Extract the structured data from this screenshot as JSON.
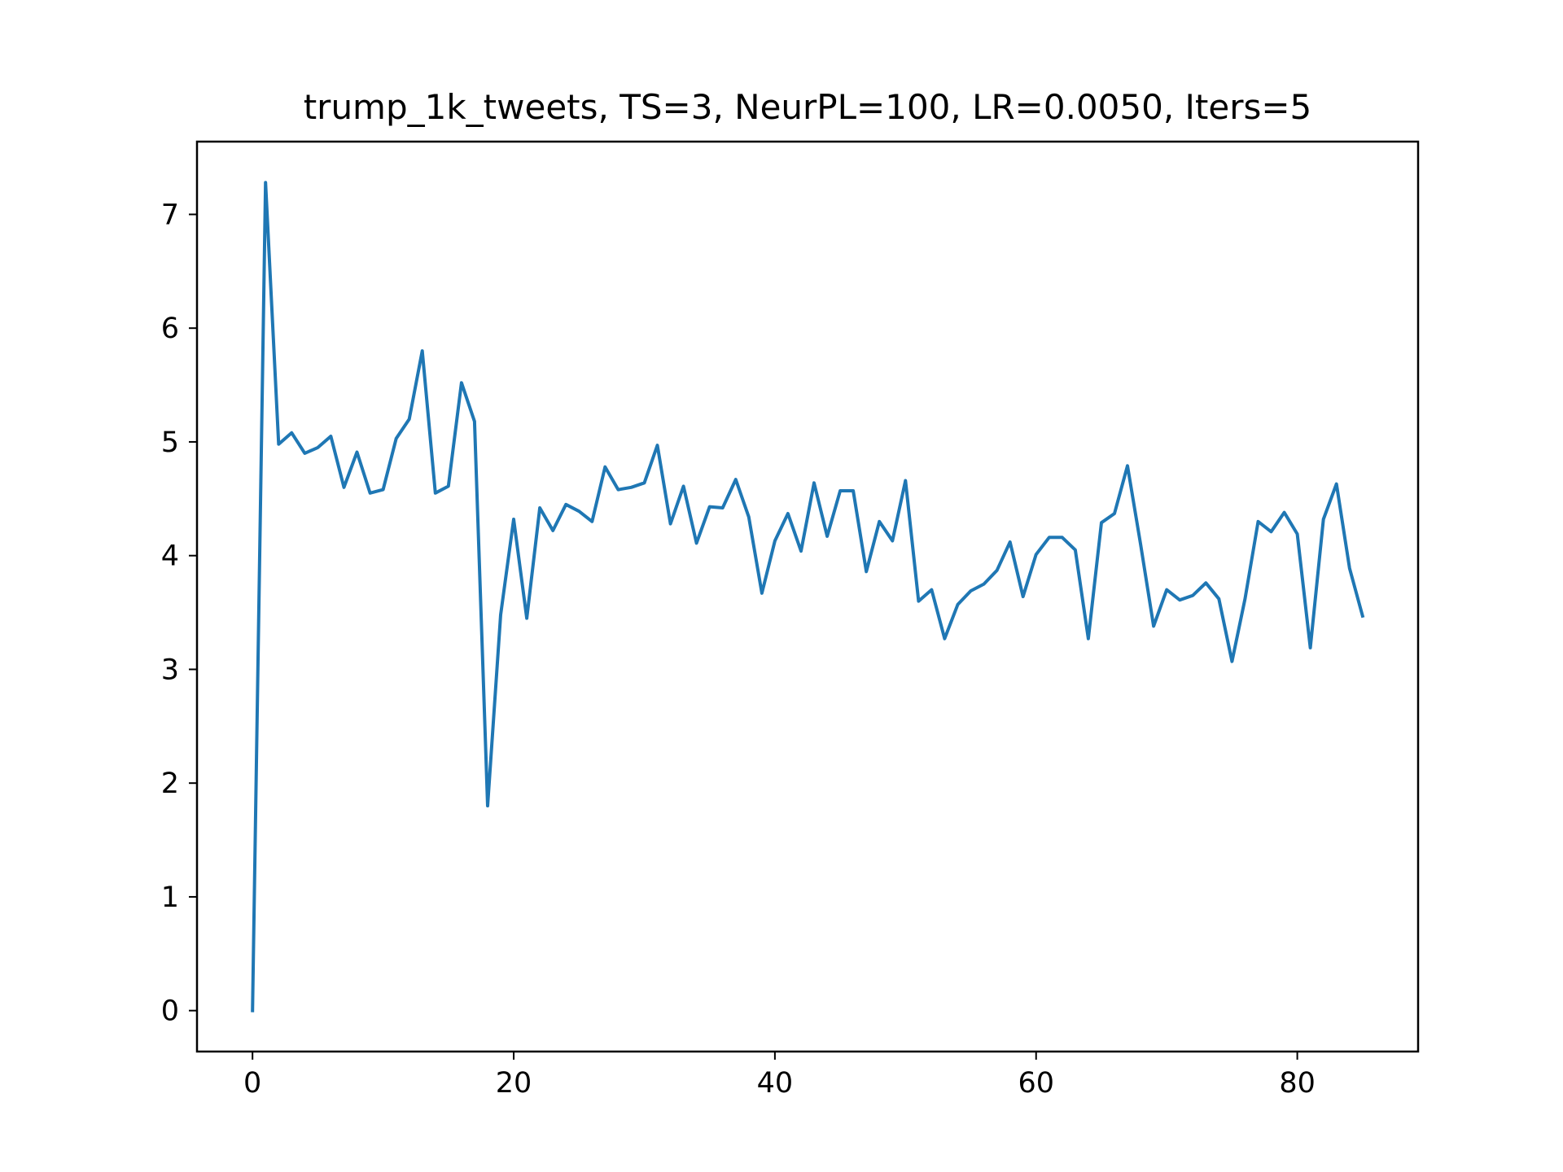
{
  "chart_data": {
    "type": "line",
    "title": "trump_1k_tweets, TS=3, NeurPL=100, LR=0.0050, Iters=5",
    "xlabel": "",
    "ylabel": "",
    "xlim": [
      -4.25,
      89.25
    ],
    "ylim": [
      -0.36,
      7.64
    ],
    "xticks": [
      0,
      20,
      40,
      60,
      80
    ],
    "yticks": [
      0,
      1,
      2,
      3,
      4,
      5,
      6,
      7
    ],
    "xtick_labels": [
      "0",
      "20",
      "40",
      "60",
      "80"
    ],
    "ytick_labels": [
      "0",
      "1",
      "2",
      "3",
      "4",
      "5",
      "6",
      "7"
    ],
    "grid": false,
    "legend": "none",
    "line_color": "#1f77b4",
    "series": [
      {
        "x": [
          0,
          1,
          2,
          3,
          4,
          5,
          6,
          7,
          8,
          9,
          10,
          11,
          12,
          13,
          14,
          15,
          16,
          17,
          18,
          19,
          20,
          21,
          22,
          23,
          24,
          25,
          26,
          27,
          28,
          29,
          30,
          31,
          32,
          33,
          34,
          35,
          36,
          37,
          38,
          39,
          40,
          41,
          42,
          43,
          44,
          45,
          46,
          47,
          48,
          49,
          50,
          51,
          52,
          53,
          54,
          55,
          56,
          57,
          58,
          59,
          60,
          61,
          62,
          63,
          64,
          65,
          66,
          67,
          68,
          69,
          70,
          71,
          72,
          73,
          74,
          75,
          76,
          77,
          78,
          79,
          80,
          81,
          82,
          83,
          84,
          85
        ],
        "values": [
          0.0,
          7.28,
          4.98,
          5.08,
          4.9,
          4.95,
          5.05,
          4.6,
          4.91,
          4.55,
          4.58,
          5.03,
          5.2,
          5.8,
          4.55,
          4.61,
          5.52,
          5.18,
          1.8,
          3.48,
          4.32,
          3.45,
          4.42,
          4.22,
          4.45,
          4.39,
          4.3,
          4.78,
          4.58,
          4.6,
          4.64,
          4.97,
          4.28,
          4.61,
          4.11,
          4.43,
          4.42,
          4.67,
          4.34,
          3.67,
          4.13,
          4.37,
          4.04,
          4.64,
          4.17,
          4.57,
          4.57,
          3.86,
          4.3,
          4.13,
          4.66,
          3.6,
          3.7,
          3.27,
          3.57,
          3.69,
          3.75,
          3.87,
          4.12,
          3.64,
          4.01,
          4.16,
          4.16,
          4.05,
          3.27,
          4.29,
          4.37,
          4.79,
          4.1,
          3.38,
          3.7,
          3.61,
          3.65,
          3.76,
          3.62,
          3.07,
          3.62,
          4.3,
          4.21,
          4.38,
          4.19,
          3.19,
          4.32,
          4.63,
          3.89,
          3.47
        ]
      }
    ]
  }
}
